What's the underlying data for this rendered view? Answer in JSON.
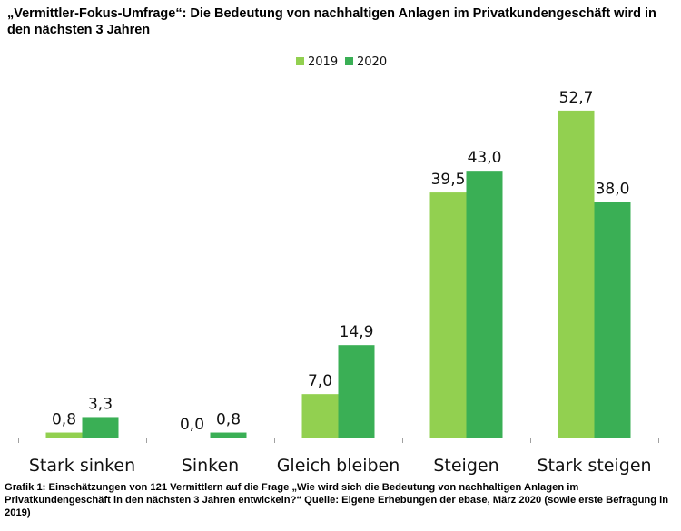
{
  "title": "„Vermittler-Fokus-Umfrage“: Die Bedeutung von nachhaltigen Anlagen im Privatkundengeschäft wird in den nächsten 3 Jahren",
  "caption": "Grafik 1: Einschätzungen von 121 Vermittlern auf die Frage „Wie wird sich die Bedeutung von nachhaltigen Anlagen im Privatkundengeschäft in den nächsten 3 Jahren entwickeln?“ Quelle: Eigene Erhebungen der ebase, März 2020 (sowie erste Befragung in 2019)",
  "colors": {
    "2019": "#92d050",
    "2020": "#3aaf55",
    "axis": "#a0a0a0"
  },
  "chart_data": {
    "type": "bar",
    "title": "„Vermittler-Fokus-Umfrage“: Die Bedeutung von nachhaltigen Anlagen im Privatkundengeschäft wird in den nächsten 3 Jahren",
    "categories": [
      "Stark sinken",
      "Sinken",
      "Gleich bleiben",
      "Steigen",
      "Stark steigen"
    ],
    "series": [
      {
        "name": "2019",
        "values": [
          0.8,
          0.0,
          7.0,
          39.5,
          52.7
        ],
        "labels": [
          "0,8",
          "0,0",
          "7,0",
          "39,5",
          "52,7"
        ]
      },
      {
        "name": "2020",
        "values": [
          3.3,
          0.8,
          14.9,
          43.0,
          38.0
        ],
        "labels": [
          "3,3",
          "0,8",
          "14,9",
          "43,0",
          "38,0"
        ]
      }
    ],
    "ylim": [
      0,
      60
    ],
    "grid": false,
    "legend": "top-center",
    "xlabel": "",
    "ylabel": ""
  }
}
